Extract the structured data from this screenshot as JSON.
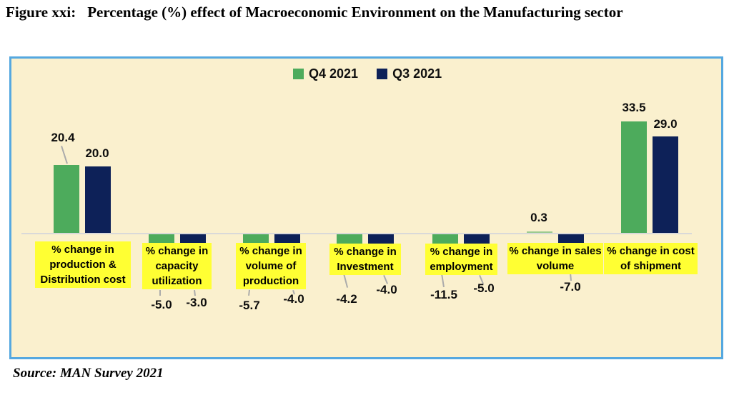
{
  "header": {
    "figure_label": "Figure xxi:",
    "title": "Percentage (%) effect of Macroeconomic Environment on the Manufacturing sector"
  },
  "footer": {
    "source": "Source: MAN Survey 2021"
  },
  "colors": {
    "q4_green": "#4DAB5C",
    "q3_navy": "#0D2158",
    "plot_background": "#FAF0CE",
    "frame_border": "#55A8E0",
    "category_label_background": "#FFFF33",
    "axis_line": "#D9D9D9",
    "leader_line": "#ABABAB"
  },
  "chart_data": {
    "type": "bar",
    "title": "Percentage (%) effect of Macroeconomic Environment on the Manufacturing sector",
    "categories": [
      "% change in production & Distribution cost",
      "% change in capacity utilization",
      "% change in volume of production",
      "% change in Investment",
      "% change in employment",
      "% change in sales volume",
      "% change in cost of shipment"
    ],
    "category_lines": [
      [
        "% change in",
        "production &",
        "Distribution cost"
      ],
      [
        "% change in",
        "capacity",
        "utilization"
      ],
      [
        "% change in",
        "volume of",
        "production"
      ],
      [
        "% change in",
        "Investment"
      ],
      [
        "% change in",
        "employment"
      ],
      [
        "% change in sales",
        "volume"
      ],
      [
        "% change in cost",
        "of shipment"
      ]
    ],
    "series": [
      {
        "name": "Q4 2021",
        "color": "#4DAB5C",
        "values": [
          20.4,
          -5.0,
          -5.7,
          -4.2,
          -11.5,
          0.3,
          33.5
        ]
      },
      {
        "name": "Q3 2021",
        "color": "#0D2158",
        "values": [
          20.0,
          -3.0,
          -4.0,
          -4.0,
          -5.0,
          -7.0,
          29.0
        ]
      }
    ],
    "value_label_decimals": 1,
    "baseline": 0,
    "ylim": [
      -12,
      36
    ],
    "grid": false,
    "legend_position": "top-center",
    "source": "MAN Survey 2021"
  }
}
